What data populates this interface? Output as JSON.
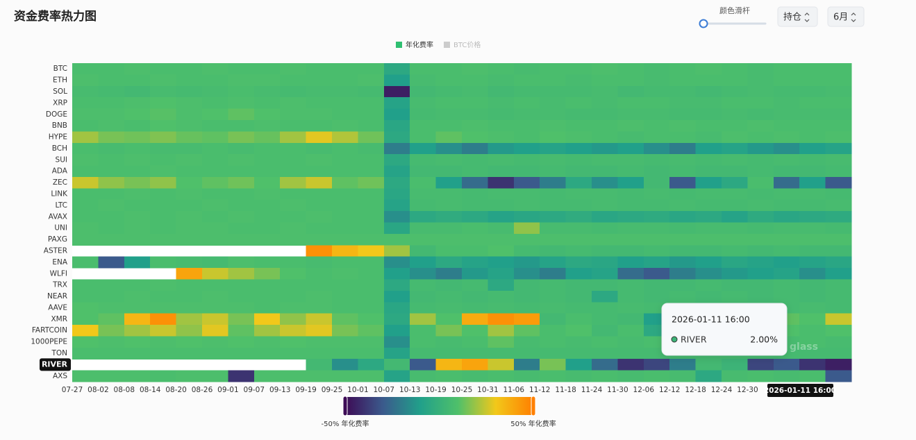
{
  "controls": {
    "slider_label": "颜色滑杆",
    "position": "持仓",
    "period": "6月"
  },
  "chart_data": {
    "type": "heatmap",
    "title": "资金费率热力图",
    "legend": [
      {
        "name": "年化费率",
        "color": "#2fbf71"
      },
      {
        "name": "BTC价格",
        "color": "#cccccc"
      }
    ],
    "categories": [
      "07-27",
      "08-02",
      "08-08",
      "08-14",
      "08-20",
      "08-26",
      "09-01",
      "09-07",
      "09-13",
      "09-19",
      "09-25",
      "10-01",
      "10-07",
      "10-13",
      "10-19",
      "10-25",
      "10-31",
      "11-06",
      "11-12",
      "11-18",
      "11-24",
      "11-30",
      "12-06",
      "12-12",
      "12-18",
      "12-24",
      "12-30",
      null,
      null,
      null
    ],
    "y_categories": [
      "BTC",
      "ETH",
      "SOL",
      "XRP",
      "DOGE",
      "BNB",
      "HYPE",
      "BCH",
      "SUI",
      "ADA",
      "ZEC",
      "LINK",
      "LTC",
      "AVAX",
      "UNI",
      "PAXG",
      "ASTER",
      "ENA",
      "WLFI",
      "TRX",
      "NEAR",
      "AAVE",
      "XMR",
      "FARTCOIN",
      "1000PEPE",
      "TON",
      "RIVER",
      "AXS"
    ],
    "values": [
      [
        8,
        8,
        9,
        8,
        8,
        9,
        8,
        8,
        9,
        8,
        8,
        8,
        -5,
        8,
        8,
        9,
        8,
        7,
        8,
        8,
        9,
        8,
        7,
        8,
        9,
        8,
        7,
        8,
        8,
        8
      ],
      [
        9,
        8,
        8,
        9,
        8,
        8,
        9,
        9,
        8,
        8,
        8,
        9,
        -10,
        7,
        8,
        8,
        7,
        8,
        8,
        7,
        8,
        8,
        7,
        8,
        8,
        8,
        7,
        8,
        8,
        8
      ],
      [
        7,
        6,
        5,
        7,
        6,
        7,
        8,
        7,
        6,
        7,
        7,
        6,
        -45,
        5,
        6,
        7,
        5,
        6,
        6,
        6,
        7,
        5,
        6,
        6,
        5,
        6,
        7,
        6,
        6,
        7
      ],
      [
        8,
        8,
        9,
        10,
        9,
        8,
        9,
        8,
        9,
        8,
        8,
        8,
        -8,
        7,
        8,
        8,
        7,
        8,
        7,
        8,
        7,
        8,
        8,
        7,
        7,
        8,
        8,
        7,
        8,
        8
      ],
      [
        9,
        9,
        10,
        11,
        9,
        10,
        12,
        10,
        9,
        9,
        8,
        8,
        -10,
        6,
        7,
        7,
        6,
        7,
        7,
        6,
        6,
        7,
        7,
        6,
        6,
        7,
        6,
        7,
        7,
        7
      ],
      [
        8,
        9,
        8,
        10,
        9,
        8,
        8,
        9,
        8,
        8,
        9,
        8,
        -6,
        8,
        8,
        9,
        8,
        8,
        9,
        8,
        8,
        9,
        8,
        9,
        8,
        8,
        9,
        8,
        8,
        8
      ],
      [
        20,
        15,
        14,
        16,
        13,
        12,
        15,
        13,
        20,
        28,
        22,
        14,
        -5,
        8,
        12,
        10,
        9,
        8,
        10,
        9,
        8,
        7,
        8,
        8,
        7,
        9,
        8,
        9,
        8,
        9
      ],
      [
        8,
        7,
        8,
        7,
        7,
        8,
        7,
        8,
        8,
        7,
        8,
        7,
        -20,
        -10,
        -15,
        -20,
        -12,
        -10,
        -8,
        -10,
        -12,
        -10,
        -15,
        -20,
        -10,
        -8,
        -12,
        -15,
        -10,
        -8
      ],
      [
        9,
        8,
        9,
        8,
        9,
        8,
        9,
        8,
        8,
        9,
        8,
        8,
        -5,
        6,
        7,
        6,
        7,
        6,
        7,
        6,
        7,
        7,
        6,
        7,
        6,
        7,
        6,
        7,
        6,
        7
      ],
      [
        8,
        8,
        8,
        9,
        8,
        8,
        8,
        8,
        8,
        8,
        8,
        8,
        -8,
        5,
        5,
        6,
        5,
        5,
        6,
        5,
        5,
        6,
        5,
        6,
        5,
        5,
        6,
        5,
        5,
        6
      ],
      [
        25,
        18,
        15,
        18,
        10,
        12,
        14,
        10,
        20,
        25,
        12,
        14,
        -5,
        8,
        -10,
        -25,
        -40,
        -30,
        -20,
        -5,
        -15,
        -10,
        5,
        -30,
        -10,
        -5,
        8,
        -25,
        -10,
        -30
      ],
      [
        8,
        8,
        9,
        8,
        9,
        8,
        8,
        9,
        8,
        8,
        8,
        8,
        -6,
        7,
        7,
        6,
        7,
        7,
        6,
        7,
        7,
        6,
        7,
        6,
        7,
        7,
        6,
        7,
        7,
        6
      ],
      [
        8,
        9,
        8,
        8,
        8,
        9,
        8,
        8,
        9,
        8,
        8,
        8,
        -8,
        6,
        7,
        6,
        6,
        7,
        6,
        6,
        7,
        6,
        6,
        7,
        6,
        6,
        7,
        6,
        6,
        7
      ],
      [
        8,
        8,
        9,
        8,
        9,
        8,
        9,
        8,
        8,
        9,
        8,
        8,
        -15,
        -5,
        -3,
        -5,
        -8,
        -6,
        -5,
        -3,
        -6,
        -5,
        -4,
        -6,
        -5,
        -8,
        -4,
        -6,
        -5,
        -4
      ],
      [
        9,
        8,
        9,
        8,
        9,
        9,
        8,
        8,
        9,
        8,
        8,
        8,
        -6,
        7,
        7,
        8,
        7,
        18,
        7,
        7,
        6,
        7,
        7,
        6,
        7,
        7,
        6,
        7,
        7,
        6
      ],
      [
        9,
        9,
        9,
        9,
        9,
        9,
        9,
        9,
        9,
        9,
        9,
        9,
        9,
        9,
        9,
        9,
        9,
        9,
        9,
        9,
        9,
        9,
        9,
        9,
        9,
        9,
        9,
        9,
        9,
        9
      ],
      [
        null,
        null,
        null,
        null,
        null,
        null,
        null,
        null,
        null,
        45,
        35,
        30,
        20,
        5,
        8,
        8,
        10,
        6,
        5,
        6,
        5,
        5,
        6,
        5,
        5,
        6,
        5,
        6,
        5,
        5
      ],
      [
        8,
        -30,
        -10,
        8,
        7,
        6,
        9,
        8,
        8,
        7,
        8,
        8,
        -15,
        -10,
        -5,
        -8,
        -10,
        -12,
        -8,
        -5,
        -6,
        -10,
        -8,
        -12,
        -10,
        -6,
        -8,
        -10,
        -8,
        -6
      ],
      [
        null,
        null,
        null,
        null,
        40,
        25,
        20,
        15,
        10,
        8,
        9,
        8,
        -10,
        -15,
        -20,
        -12,
        -8,
        -15,
        -20,
        -10,
        -8,
        -25,
        -30,
        -20,
        -15,
        -12,
        -10,
        -8,
        -15,
        -10
      ],
      [
        8,
        8,
        8,
        9,
        8,
        8,
        8,
        8,
        8,
        8,
        8,
        8,
        -5,
        6,
        5,
        6,
        -5,
        5,
        6,
        5,
        5,
        6,
        5,
        5,
        6,
        5,
        5,
        6,
        5,
        6
      ],
      [
        8,
        8,
        9,
        8,
        8,
        9,
        8,
        8,
        8,
        9,
        8,
        8,
        -10,
        5,
        6,
        5,
        6,
        5,
        6,
        5,
        -5,
        6,
        5,
        6,
        5,
        6,
        5,
        6,
        5,
        6
      ],
      [
        10,
        9,
        9,
        9,
        9,
        9,
        9,
        8,
        9,
        9,
        8,
        8,
        -6,
        6,
        7,
        6,
        7,
        6,
        7,
        6,
        6,
        7,
        6,
        7,
        6,
        6,
        7,
        6,
        7,
        6
      ],
      [
        10,
        12,
        35,
        45,
        20,
        25,
        15,
        30,
        18,
        25,
        12,
        10,
        -5,
        20,
        10,
        38,
        45,
        42,
        5,
        8,
        6,
        5,
        -10,
        8,
        10,
        20,
        8,
        12,
        10,
        25
      ],
      [
        30,
        15,
        20,
        25,
        18,
        28,
        12,
        20,
        25,
        28,
        15,
        12,
        -10,
        8,
        15,
        10,
        20,
        12,
        8,
        10,
        5,
        8,
        -5,
        10,
        15,
        8,
        12,
        10,
        8,
        10
      ],
      [
        10,
        9,
        10,
        9,
        10,
        9,
        10,
        9,
        10,
        9,
        9,
        9,
        -15,
        8,
        7,
        8,
        12,
        7,
        8,
        7,
        8,
        7,
        8,
        7,
        8,
        7,
        8,
        7,
        8,
        7
      ],
      [
        8,
        8,
        8,
        8,
        8,
        8,
        8,
        8,
        8,
        8,
        8,
        8,
        -8,
        6,
        6,
        6,
        6,
        6,
        6,
        6,
        6,
        6,
        6,
        6,
        6,
        6,
        6,
        6,
        6,
        6
      ],
      [
        null,
        null,
        null,
        null,
        null,
        null,
        null,
        null,
        null,
        5,
        -15,
        -5,
        5,
        -30,
        35,
        40,
        25,
        -20,
        15,
        -10,
        -25,
        -40,
        -35,
        -20,
        5,
        2,
        -35,
        -30,
        -40,
        -45
      ],
      [
        9,
        9,
        9,
        8,
        9,
        9,
        -40,
        9,
        9,
        9,
        9,
        9,
        -8,
        7,
        8,
        7,
        8,
        7,
        8,
        7,
        8,
        7,
        8,
        7,
        -5,
        7,
        8,
        7,
        8,
        -30
      ]
    ],
    "visual_map": {
      "min": {
        "value": -50,
        "label": "-50% 年化费率"
      },
      "max": {
        "value": 50,
        "label": "50% 年化费率"
      },
      "colors": [
        "#3d0b55",
        "#3b5a8c",
        "#21a08a",
        "#4fc06a",
        "#f2c81a",
        "#ff7f00"
      ]
    },
    "highlight_row": "RIVER",
    "tooltip": {
      "time": "2026-01-11 16:00",
      "name": "RIVER",
      "value": 2,
      "value_label": "2.00%"
    },
    "watermark": "glass"
  }
}
